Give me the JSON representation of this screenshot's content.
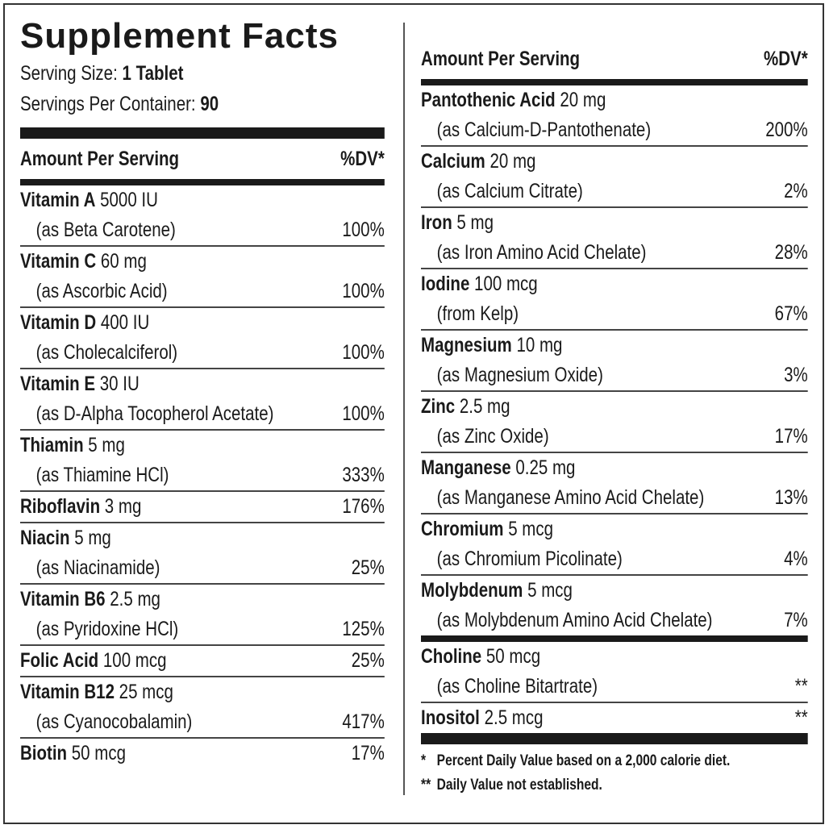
{
  "header": {
    "title": "Supplement Facts",
    "serving_size": {
      "label": "Serving Size:",
      "value": "1 Tablet"
    },
    "servings_per_container": {
      "label": "Servings Per Container:",
      "value": "90"
    }
  },
  "left_column": {
    "header": {
      "amount": "Amount Per Serving",
      "dv": "%DV*"
    },
    "rows": [
      {
        "name": "Vitamin A",
        "amount": "5000 IU",
        "source": "(as Beta Carotene)",
        "dv": "100%"
      },
      {
        "name": "Vitamin C",
        "amount": "60 mg",
        "source": "(as Ascorbic Acid)",
        "dv": "100%"
      },
      {
        "name": "Vitamin D",
        "amount": "400 IU",
        "source": "(as Cholecalciferol)",
        "dv": "100%"
      },
      {
        "name": "Vitamin E",
        "amount": "30 IU",
        "source": "(as D-Alpha Tocopherol Acetate)",
        "dv": "100%"
      },
      {
        "name": "Thiamin",
        "amount": "5 mg",
        "source": "(as Thiamine HCl)",
        "dv": "333%"
      },
      {
        "name": "Riboflavin",
        "amount": "3 mg",
        "dv": "176%"
      },
      {
        "name": "Niacin",
        "amount": "5 mg",
        "source": "(as Niacinamide)",
        "dv": "25%"
      },
      {
        "name": "Vitamin B6",
        "amount": "2.5 mg",
        "source": "(as Pyridoxine HCl)",
        "dv": "125%"
      },
      {
        "name": "Folic Acid",
        "amount": "100 mcg",
        "dv": "25%"
      },
      {
        "name": "Vitamin B12",
        "amount": "25 mcg",
        "source": "(as Cyanocobalamin)",
        "dv": "417%"
      },
      {
        "name": "Biotin",
        "amount": "50 mcg",
        "dv": "17%"
      }
    ]
  },
  "right_column": {
    "header": {
      "amount": "Amount Per Serving",
      "dv": "%DV*"
    },
    "rows": [
      {
        "name": "Pantothenic Acid",
        "amount": "20 mg",
        "source": "(as Calcium-D-Pantothenate)",
        "dv": "200%"
      },
      {
        "name": "Calcium",
        "amount": "20 mg",
        "source": "(as Calcium Citrate)",
        "dv": "2%"
      },
      {
        "name": "Iron",
        "amount": "5 mg",
        "source": "(as Iron Amino Acid Chelate)",
        "dv": "28%"
      },
      {
        "name": "Iodine",
        "amount": "100 mcg",
        "source": "(from Kelp)",
        "dv": "67%"
      },
      {
        "name": "Magnesium",
        "amount": "10 mg",
        "source": "(as Magnesium Oxide)",
        "dv": "3%"
      },
      {
        "name": "Zinc",
        "amount": "2.5 mg",
        "source": "(as Zinc Oxide)",
        "dv": "17%"
      },
      {
        "name": "Manganese",
        "amount": "0.25 mg",
        "source": "(as Manganese Amino Acid Chelate)",
        "dv": "13%"
      },
      {
        "name": "Chromium",
        "amount": "5 mcg",
        "source": "(as Chromium Picolinate)",
        "dv": "4%"
      },
      {
        "name": "Molybdenum",
        "amount": "5 mcg",
        "source": "(as Molybdenum Amino Acid Chelate)",
        "dv": "7%"
      }
    ],
    "other_rows": [
      {
        "name": "Choline",
        "amount": "50 mcg",
        "source": "(as Choline Bitartrate)",
        "dv": "**"
      },
      {
        "name": "Inositol",
        "amount": "2.5 mcg",
        "dv": "**"
      }
    ]
  },
  "footnotes": [
    {
      "mark": "*",
      "text": "Percent Daily Value based on a 2,000 calorie diet."
    },
    {
      "mark": "**",
      "text": "Daily Value not established."
    }
  ]
}
